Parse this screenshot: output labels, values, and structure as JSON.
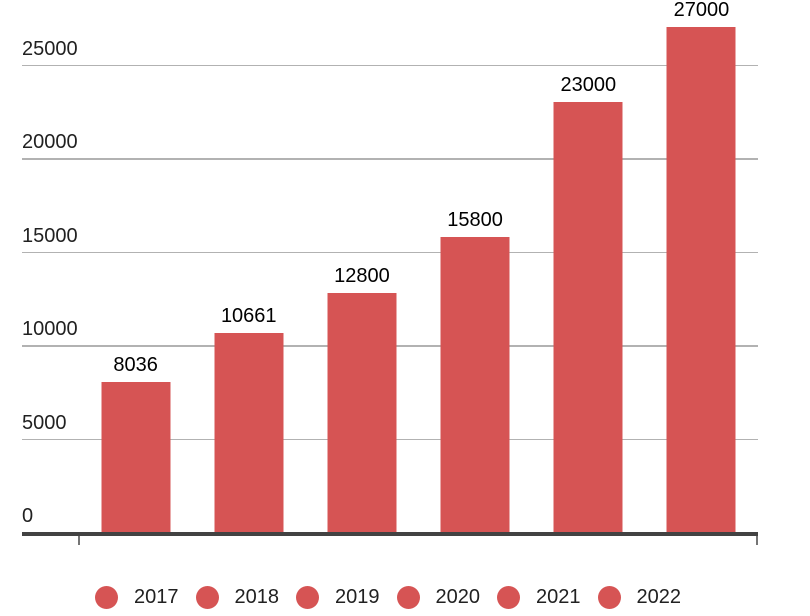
{
  "chart_data": {
    "type": "bar",
    "title": "",
    "xlabel": "",
    "ylabel": "",
    "categories": [
      "2017",
      "2018",
      "2019",
      "2020",
      "2021",
      "2022"
    ],
    "values": [
      8036,
      10661,
      12800,
      15800,
      23000,
      27000
    ],
    "value_labels": [
      "8036",
      "10661",
      "12800",
      "15800",
      "23000",
      "27000"
    ],
    "yticks": [
      0,
      5000,
      10000,
      15000,
      20000,
      25000
    ],
    "ytick_labels": [
      "0",
      "5000",
      "10000",
      "15000",
      "20000",
      "25000"
    ],
    "ylim": [
      0,
      28460
    ],
    "grid": true,
    "legend_position": "bottom",
    "legend_entries": [
      "2017",
      "2018",
      "2019",
      "2020",
      "2021",
      "2022"
    ],
    "colors": {
      "bar": "#d65454",
      "legend_dot": "#d65454",
      "gridline": "#b2b2b2",
      "baseline": "#424242",
      "tick": "#757575",
      "axis_text": "#212121",
      "value_text": "#000000",
      "background": "#ffffff"
    }
  }
}
